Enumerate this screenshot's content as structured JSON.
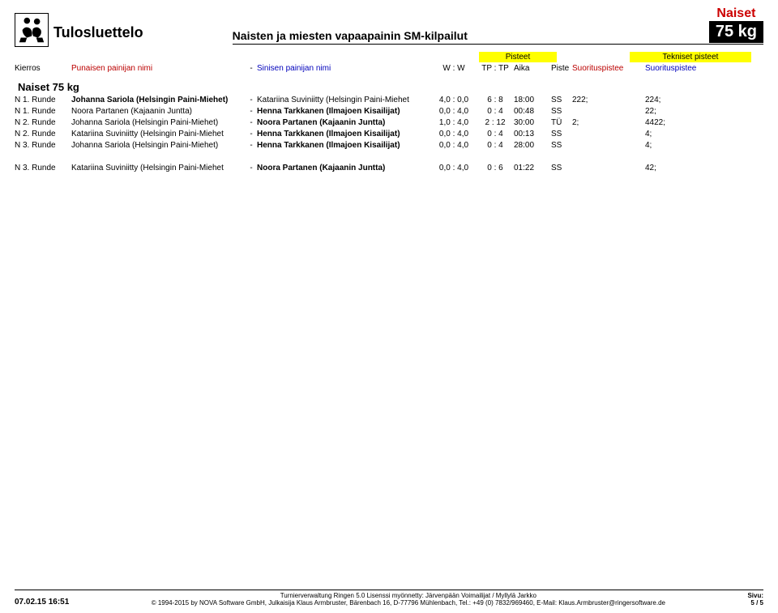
{
  "header": {
    "title_main": "Tulosluettelo",
    "title_sub": "Naisten ja miesten vapaapainin SM-kilpailut",
    "category_top": "Naiset",
    "category_weight": "75 kg"
  },
  "sub_header": {
    "pisteet_label": "Pisteet",
    "tekniset_label": "Tekniset pisteet",
    "kierros": "Kierros",
    "red_label": "Punaisen painijan nimi",
    "blue_label": "Sinisen painijan nimi",
    "ww": "W :  W",
    "tptp": "TP : TP",
    "aika": "Aika",
    "piste": "Piste",
    "sp1": "Suorituspistee",
    "sp2": "Suorituspistee"
  },
  "category_title": "Naiset 75 kg",
  "bouts": [
    {
      "round": "N 1. Runde",
      "red": "Johanna Sariola (Helsingin Paini-Miehet)",
      "blue": "Katariina Suviniitty (Helsingin Paini-Miehet",
      "ww": "4,0 : 0,0",
      "tptp": "6  :  8",
      "time": "18:00",
      "res": "SS",
      "sp1": "222;",
      "sp2": "224;",
      "redBold": true,
      "blueBold": false
    },
    {
      "round": "N 1. Runde",
      "red": "Noora Partanen (Kajaanin Juntta)",
      "blue": "Henna Tarkkanen (Ilmajoen Kisailijat)",
      "ww": "0,0 : 4,0",
      "tptp": "0  :  4",
      "time": "00:48",
      "res": "SS",
      "sp1": "",
      "sp2": "22;",
      "redBold": false,
      "blueBold": true
    },
    {
      "round": "N 2. Runde",
      "red": "Johanna Sariola (Helsingin Paini-Miehet)",
      "blue": "Noora Partanen (Kajaanin Juntta)",
      "ww": "1,0 : 4,0",
      "tptp": "2  : 12",
      "time": "30:00",
      "res": "TÜ",
      "sp1": "2;",
      "sp2": "4422;",
      "redBold": false,
      "blueBold": true
    },
    {
      "round": "N 2. Runde",
      "red": "Katariina Suviniitty (Helsingin Paini-Miehet",
      "blue": "Henna Tarkkanen (Ilmajoen Kisailijat)",
      "ww": "0,0 : 4,0",
      "tptp": "0  :  4",
      "time": "00:13",
      "res": "SS",
      "sp1": "",
      "sp2": "4;",
      "redBold": false,
      "blueBold": true
    },
    {
      "round": "N 3. Runde",
      "red": "Johanna Sariola (Helsingin Paini-Miehet)",
      "blue": "Henna Tarkkanen (Ilmajoen Kisailijat)",
      "ww": "0,0 : 4,0",
      "tptp": "0  :  4",
      "time": "28:00",
      "res": "SS",
      "sp1": "",
      "sp2": "4;",
      "redBold": false,
      "blueBold": true
    }
  ],
  "bouts2": [
    {
      "round": "N 3. Runde",
      "red": "Katariina Suviniitty (Helsingin Paini-Miehet",
      "blue": "Noora Partanen (Kajaanin Juntta)",
      "ww": "0,0 : 4,0",
      "tptp": "0  :  6",
      "time": "01:22",
      "res": "SS",
      "sp1": "",
      "sp2": "42;",
      "redBold": false,
      "blueBold": true
    }
  ],
  "footer": {
    "left": "07.02.15 16:51",
    "mid1": "Turnierverwaltung Ringen 5.0 Lisenssi myönnetty: Järvenpään Voimailijat / Myllylä Jarkko",
    "mid2": "© 1994-2015 by NOVA Software GmbH, Julkaisija Klaus Armbruster, Bärenbach 16, D-77796 Mühlenbach, Tel.: +49 (0) 7832/969460, E-Mail: Klaus.Armbruster@ringersoftware.de",
    "right_label": "Sivu:",
    "right_page": "5 / 5"
  },
  "colors": {
    "yellow": "#ffff00",
    "red": "#bb0000",
    "blue": "#0000bb",
    "cat_red": "#cc0000"
  }
}
